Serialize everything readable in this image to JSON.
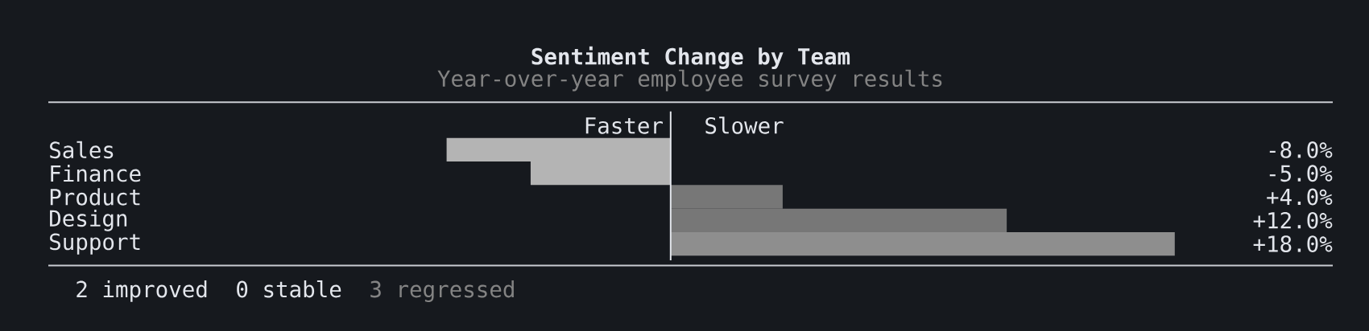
{
  "chart_data": {
    "type": "bar",
    "orientation": "horizontal",
    "title": "Sentiment Change by Team",
    "subtitle": "Year-over-year employee survey results",
    "categories": [
      "Sales",
      "Finance",
      "Product",
      "Design",
      "Support"
    ],
    "values": [
      -8,
      -5,
      4,
      12,
      18
    ],
    "colors": [
      "#b4b4b4",
      "#b4b4b4",
      "#777777",
      "#777777",
      "#8e8e8e"
    ],
    "value_labels": [
      "-8.0%",
      "-5.0%",
      "+4.0%",
      "+12.0%",
      "+18.0%"
    ],
    "tick_labels": "y",
    "annotations": [
      "Faster",
      "Slower",
      "2 improved",
      "0 stable",
      "3 regressed"
    ]
  }
}
